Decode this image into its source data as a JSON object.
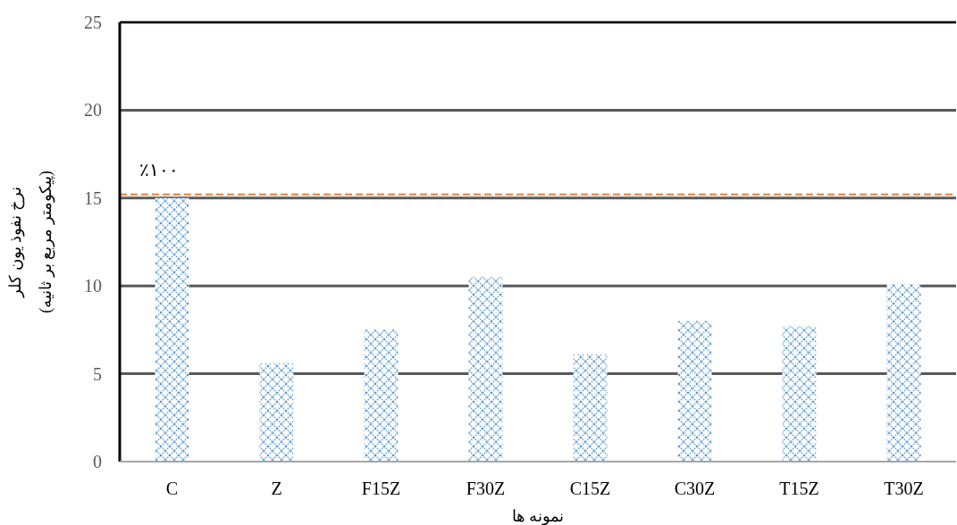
{
  "chart_data": {
    "type": "bar",
    "xlabel": "نمونه ها",
    "ylabel": "نرخ نفوذ یون کلر\n(پیکومتر مربع بر ثانیه)",
    "categories": [
      "C",
      "Z",
      "F15Z",
      "F30Z",
      "C15Z",
      "C30Z",
      "T15Z",
      "T30Z"
    ],
    "values": [
      15.0,
      5.6,
      7.5,
      10.5,
      6.1,
      8.0,
      7.7,
      10.1
    ],
    "color": "#5b9bd5",
    "ylim": [
      0,
      25
    ],
    "yticks": [
      0,
      5,
      10,
      15,
      20,
      25
    ],
    "grid": "y",
    "ref_lines": [
      {
        "axis": "y",
        "value": 15.2,
        "label": "٪۱۰۰",
        "color": "#ed7d31",
        "line_style": "dashed"
      }
    ]
  }
}
